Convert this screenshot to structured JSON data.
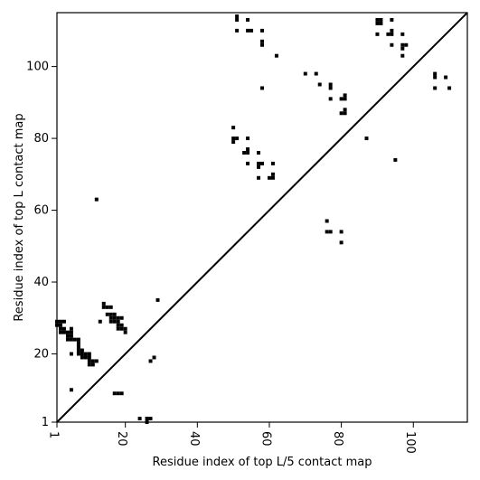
{
  "chart_data": {
    "type": "heatmap",
    "title": "",
    "xlabel": "Residue index of top L/5 contact map",
    "ylabel": "Residue index of top L contact map",
    "xlim": [
      1,
      115
    ],
    "ylim": [
      1,
      115
    ],
    "xticks": [
      1,
      20,
      40,
      60,
      80,
      100
    ],
    "yticks": [
      1,
      20,
      40,
      60,
      80,
      100
    ],
    "xtick_labels": [
      "1",
      "20",
      "40",
      "60",
      "80",
      "100"
    ],
    "ytick_labels": [
      "1",
      "20",
      "40",
      "60",
      "80",
      "100"
    ],
    "diagonal": true,
    "grid": false,
    "cell_color": "#000000",
    "lower_triangle_contacts": [
      [
        1,
        28
      ],
      [
        1,
        29
      ],
      [
        2,
        26
      ],
      [
        2,
        27
      ],
      [
        2,
        28
      ],
      [
        2,
        29
      ],
      [
        3,
        26
      ],
      [
        3,
        27
      ],
      [
        3,
        29
      ],
      [
        4,
        24
      ],
      [
        4,
        25
      ],
      [
        4,
        26
      ],
      [
        5,
        24
      ],
      [
        5,
        25
      ],
      [
        5,
        26
      ],
      [
        5,
        27
      ],
      [
        6,
        24
      ],
      [
        7,
        20
      ],
      [
        7,
        21
      ],
      [
        7,
        22
      ],
      [
        7,
        23
      ],
      [
        7,
        24
      ],
      [
        8,
        19
      ],
      [
        8,
        20
      ],
      [
        8,
        21
      ],
      [
        9,
        19
      ],
      [
        9,
        20
      ],
      [
        10,
        17
      ],
      [
        10,
        18
      ],
      [
        10,
        19
      ],
      [
        10,
        20
      ],
      [
        11,
        17
      ],
      [
        11,
        18
      ],
      [
        12,
        18
      ],
      [
        5,
        20
      ],
      [
        5,
        10
      ],
      [
        12,
        63
      ],
      [
        13,
        29
      ],
      [
        14,
        33
      ],
      [
        14,
        34
      ],
      [
        15,
        31
      ],
      [
        15,
        33
      ],
      [
        16,
        29
      ],
      [
        16,
        30
      ],
      [
        16,
        31
      ],
      [
        16,
        33
      ],
      [
        17,
        29
      ],
      [
        17,
        30
      ],
      [
        17,
        31
      ],
      [
        18,
        27
      ],
      [
        18,
        28
      ],
      [
        18,
        29
      ],
      [
        18,
        30
      ],
      [
        19,
        27
      ],
      [
        19,
        28
      ],
      [
        19,
        30
      ],
      [
        20,
        26
      ],
      [
        20,
        27
      ],
      [
        17,
        9
      ],
      [
        18,
        9
      ],
      [
        19,
        9
      ],
      [
        24,
        2
      ],
      [
        26,
        1
      ],
      [
        26,
        2
      ],
      [
        27,
        2
      ],
      [
        27,
        18
      ],
      [
        28,
        19
      ],
      [
        29,
        35
      ]
    ],
    "upper_triangle_contacts": [
      [
        50,
        79
      ],
      [
        50,
        80
      ],
      [
        50,
        83
      ],
      [
        51,
        80
      ],
      [
        51,
        110
      ],
      [
        51,
        113
      ],
      [
        51,
        114
      ],
      [
        53,
        76
      ],
      [
        54,
        73
      ],
      [
        54,
        76
      ],
      [
        54,
        77
      ],
      [
        54,
        80
      ],
      [
        54,
        110
      ],
      [
        54,
        113
      ],
      [
        55,
        110
      ],
      [
        57,
        69
      ],
      [
        57,
        72
      ],
      [
        57,
        73
      ],
      [
        57,
        76
      ],
      [
        58,
        73
      ],
      [
        58,
        94
      ],
      [
        58,
        106
      ],
      [
        58,
        107
      ],
      [
        58,
        110
      ],
      [
        60,
        69
      ],
      [
        61,
        69
      ],
      [
        61,
        70
      ],
      [
        61,
        73
      ],
      [
        62,
        103
      ],
      [
        70,
        98
      ],
      [
        73,
        98
      ],
      [
        74,
        95
      ],
      [
        76,
        54
      ],
      [
        76,
        57
      ],
      [
        77,
        54
      ],
      [
        77,
        91
      ],
      [
        77,
        94
      ],
      [
        77,
        95
      ],
      [
        80,
        51
      ],
      [
        80,
        54
      ],
      [
        80,
        87
      ],
      [
        80,
        91
      ],
      [
        81,
        87
      ],
      [
        81,
        88
      ],
      [
        81,
        91
      ],
      [
        81,
        92
      ],
      [
        87,
        80
      ],
      [
        90,
        109
      ],
      [
        90,
        112
      ],
      [
        90,
        113
      ],
      [
        91,
        112
      ],
      [
        91,
        113
      ],
      [
        93,
        109
      ],
      [
        94,
        106
      ],
      [
        94,
        109
      ],
      [
        94,
        110
      ],
      [
        94,
        113
      ],
      [
        95,
        74
      ],
      [
        97,
        103
      ],
      [
        97,
        105
      ],
      [
        97,
        106
      ],
      [
        97,
        109
      ],
      [
        98,
        106
      ],
      [
        106,
        94
      ],
      [
        106,
        97
      ],
      [
        106,
        98
      ],
      [
        109,
        97
      ],
      [
        110,
        94
      ]
    ]
  }
}
